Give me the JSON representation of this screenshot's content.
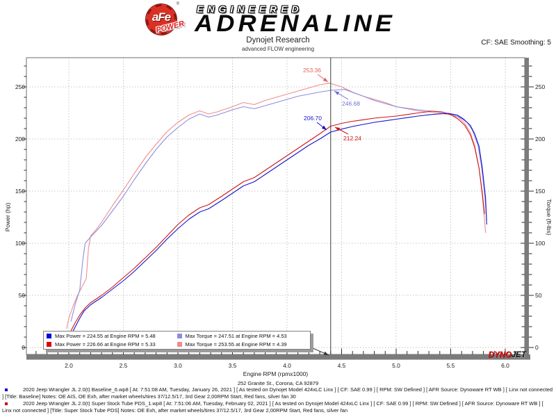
{
  "header": {
    "brand": {
      "circle_text": "aFe",
      "reg": "®",
      "circle_sub": "POWER",
      "line1": "ENGINEERED",
      "line2": "ADRENALINE"
    },
    "title": "Dynojet Research",
    "subtitle": "advanced FLOW engineering",
    "smoothing": "CF: SAE Smoothing: 5"
  },
  "chart_data": {
    "type": "line",
    "xlabel": "Engine RPM (rpmx1000)",
    "ylabel_left": "Power (hp)",
    "ylabel_right": "Torque (ft-lbs)",
    "xlim": [
      1.62,
      6.18
    ],
    "ylim": [
      -7,
      279
    ],
    "x_ticks": [
      "2.0",
      "2.5",
      "3.0",
      "3.5",
      "4.0",
      "4.5",
      "5.0",
      "5.5",
      "6.0"
    ],
    "x_tick_values": [
      2.0,
      2.5,
      3.0,
      3.5,
      4.0,
      4.5,
      5.0,
      5.5,
      6.0
    ],
    "y_ticks": [
      0,
      50,
      100,
      150,
      200,
      250
    ],
    "x_minor_step": 0.1,
    "y_minor_step": 10,
    "grid": true,
    "cursor": {
      "rpm": 4.4,
      "label": "4.4"
    },
    "series": [
      {
        "id": "torque_ss",
        "name": "Torque - Super Stock Tube PDS",
        "color": "#ef8d8d",
        "points": [
          [
            1.98,
            18
          ],
          [
            2.0,
            28
          ],
          [
            2.04,
            40
          ],
          [
            2.08,
            50
          ],
          [
            2.12,
            58
          ],
          [
            2.16,
            66
          ],
          [
            2.18,
            95
          ],
          [
            2.2,
            107
          ],
          [
            2.25,
            113
          ],
          [
            2.3,
            120
          ],
          [
            2.4,
            136
          ],
          [
            2.5,
            151
          ],
          [
            2.6,
            167
          ],
          [
            2.7,
            182
          ],
          [
            2.8,
            195
          ],
          [
            2.9,
            207
          ],
          [
            3.0,
            216
          ],
          [
            3.1,
            223
          ],
          [
            3.2,
            227
          ],
          [
            3.28,
            224
          ],
          [
            3.36,
            226
          ],
          [
            3.5,
            231
          ],
          [
            3.6,
            235
          ],
          [
            3.7,
            233
          ],
          [
            3.8,
            237
          ],
          [
            3.9,
            240
          ],
          [
            4.0,
            243
          ],
          [
            4.1,
            246
          ],
          [
            4.2,
            249
          ],
          [
            4.3,
            252
          ],
          [
            4.39,
            253.55
          ],
          [
            4.5,
            250
          ],
          [
            4.6,
            245
          ],
          [
            4.7,
            241
          ],
          [
            4.8,
            238
          ],
          [
            4.9,
            235
          ],
          [
            5.0,
            231
          ],
          [
            5.1,
            229
          ],
          [
            5.2,
            227
          ],
          [
            5.3,
            226
          ],
          [
            5.4,
            225
          ],
          [
            5.5,
            223
          ],
          [
            5.57,
            221
          ],
          [
            5.63,
            215
          ],
          [
            5.68,
            206
          ],
          [
            5.72,
            194
          ],
          [
            5.76,
            172
          ],
          [
            5.79,
            145
          ],
          [
            5.81,
            122
          ],
          [
            5.82,
            110
          ]
        ]
      },
      {
        "id": "torque_bl",
        "name": "Torque - Baseline",
        "color": "#8d8de0",
        "points": [
          [
            2.02,
            25
          ],
          [
            2.06,
            42
          ],
          [
            2.1,
            55
          ],
          [
            2.13,
            85
          ],
          [
            2.15,
            100
          ],
          [
            2.2,
            106
          ],
          [
            2.3,
            117
          ],
          [
            2.4,
            131
          ],
          [
            2.5,
            145
          ],
          [
            2.6,
            161
          ],
          [
            2.7,
            176
          ],
          [
            2.8,
            190
          ],
          [
            2.9,
            202
          ],
          [
            3.0,
            211
          ],
          [
            3.1,
            219
          ],
          [
            3.2,
            224
          ],
          [
            3.28,
            221
          ],
          [
            3.36,
            223
          ],
          [
            3.5,
            228
          ],
          [
            3.6,
            231
          ],
          [
            3.7,
            229
          ],
          [
            3.8,
            232
          ],
          [
            3.9,
            235
          ],
          [
            4.0,
            238
          ],
          [
            4.1,
            241
          ],
          [
            4.2,
            243
          ],
          [
            4.3,
            245
          ],
          [
            4.4,
            246.68
          ],
          [
            4.53,
            247.51
          ],
          [
            4.62,
            244
          ],
          [
            4.7,
            241
          ],
          [
            4.8,
            237
          ],
          [
            4.9,
            234
          ],
          [
            5.0,
            231
          ],
          [
            5.1,
            229.5
          ],
          [
            5.2,
            228
          ],
          [
            5.3,
            227
          ],
          [
            5.4,
            226
          ],
          [
            5.5,
            224
          ],
          [
            5.58,
            221
          ],
          [
            5.65,
            216
          ],
          [
            5.7,
            208
          ],
          [
            5.75,
            194
          ],
          [
            5.78,
            175
          ],
          [
            5.81,
            148
          ],
          [
            5.83,
            122
          ]
        ]
      },
      {
        "id": "power_ss",
        "name": "Power - Super Stock Tube PDS",
        "color": "#cc1616",
        "points": [
          [
            1.98,
            10
          ],
          [
            2.02,
            16
          ],
          [
            2.06,
            24
          ],
          [
            2.1,
            31
          ],
          [
            2.15,
            38
          ],
          [
            2.2,
            43
          ],
          [
            2.3,
            50
          ],
          [
            2.4,
            58
          ],
          [
            2.5,
            67
          ],
          [
            2.6,
            76
          ],
          [
            2.7,
            86
          ],
          [
            2.8,
            96
          ],
          [
            2.9,
            107
          ],
          [
            3.0,
            118
          ],
          [
            3.1,
            127
          ],
          [
            3.2,
            134
          ],
          [
            3.28,
            137
          ],
          [
            3.4,
            145
          ],
          [
            3.5,
            152
          ],
          [
            3.6,
            159
          ],
          [
            3.7,
            163
          ],
          [
            3.8,
            170
          ],
          [
            3.9,
            177
          ],
          [
            4.0,
            184
          ],
          [
            4.1,
            191
          ],
          [
            4.2,
            198
          ],
          [
            4.3,
            205
          ],
          [
            4.4,
            212.24
          ],
          [
            4.5,
            215
          ],
          [
            4.6,
            217
          ],
          [
            4.7,
            218.5
          ],
          [
            4.8,
            220
          ],
          [
            4.9,
            221
          ],
          [
            5.0,
            222
          ],
          [
            5.1,
            223.5
          ],
          [
            5.2,
            225
          ],
          [
            5.33,
            226.66
          ],
          [
            5.42,
            226
          ],
          [
            5.5,
            223.5
          ],
          [
            5.57,
            219
          ],
          [
            5.63,
            213
          ],
          [
            5.68,
            204
          ],
          [
            5.72,
            192
          ],
          [
            5.76,
            172
          ],
          [
            5.79,
            148
          ],
          [
            5.81,
            128
          ]
        ]
      },
      {
        "id": "power_bl",
        "name": "Power - Baseline",
        "color": "#1414cc",
        "points": [
          [
            2.02,
            12
          ],
          [
            2.06,
            20
          ],
          [
            2.1,
            28
          ],
          [
            2.14,
            35
          ],
          [
            2.2,
            41
          ],
          [
            2.3,
            48
          ],
          [
            2.4,
            56
          ],
          [
            2.5,
            64
          ],
          [
            2.6,
            73
          ],
          [
            2.7,
            83
          ],
          [
            2.8,
            93
          ],
          [
            2.9,
            104
          ],
          [
            3.0,
            114
          ],
          [
            3.1,
            123
          ],
          [
            3.2,
            130
          ],
          [
            3.28,
            133
          ],
          [
            3.4,
            141
          ],
          [
            3.5,
            148
          ],
          [
            3.6,
            155
          ],
          [
            3.7,
            159
          ],
          [
            3.8,
            166
          ],
          [
            3.9,
            173
          ],
          [
            4.0,
            180
          ],
          [
            4.1,
            187
          ],
          [
            4.2,
            194
          ],
          [
            4.3,
            200
          ],
          [
            4.4,
            206.7
          ],
          [
            4.5,
            209.5
          ],
          [
            4.6,
            212
          ],
          [
            4.7,
            214
          ],
          [
            4.8,
            216
          ],
          [
            4.9,
            217.5
          ],
          [
            5.0,
            219
          ],
          [
            5.1,
            220.5
          ],
          [
            5.2,
            222
          ],
          [
            5.35,
            223.8
          ],
          [
            5.48,
            224.55
          ],
          [
            5.56,
            223
          ],
          [
            5.62,
            219
          ],
          [
            5.68,
            213
          ],
          [
            5.72,
            205
          ],
          [
            5.76,
            193
          ],
          [
            5.79,
            172
          ],
          [
            5.82,
            143
          ],
          [
            5.83,
            118
          ]
        ]
      }
    ],
    "callouts": [
      {
        "id": "c-torque-ss",
        "label": "253.36",
        "color": "#e06060"
      },
      {
        "id": "c-torque-bl",
        "label": "246.68",
        "color": "#7070d8"
      },
      {
        "id": "c-power-bl",
        "label": "206.70",
        "color": "#1414cc"
      },
      {
        "id": "c-power-ss",
        "label": "212.24",
        "color": "#cc1616"
      },
      {
        "id": "c-cursor",
        "label": "4.4",
        "color": "#333333"
      }
    ],
    "legend": [
      {
        "color": "#0000e0",
        "label": "Max Power = 224.55 at Engine RPM = 5.48"
      },
      {
        "color": "#e00000",
        "label": "Max Power = 226.66 at Engine RPM = 5.33"
      },
      {
        "color": "#8d8de0",
        "label": "Max Torque = 247.51 at Engine RPM = 4.53"
      },
      {
        "color": "#ef8d8d",
        "label": "Max Torque = 253.55 at Engine RPM = 4.39"
      }
    ],
    "watermark": {
      "part1": "DYNO",
      "part2": "JET"
    }
  },
  "footer": {
    "address": "252 Granite St., Corona, CA 92879",
    "entries": [
      {
        "bullet_color": "#0000cc",
        "text": "2020 Jeep Wrangler JL 2.0(t) Baseline_6.wp8 [ At: 7:51:08 AM, Tuesday, January 26, 2021 ] [ As tested on Dynojet Model 424xLC Linx ] [ CF: SAE 0.99 ] [ RPM: SW Defined ] [ AFR Source: Dynoware RT WB ] [ Linx not connected ] [Title: Baseline]  Notes: OE AIS, OE Exh, after market wheels/tires 37/12.5/17, 3rd Gear 2,00RPM Start, Red fans, silver fan 30"
      },
      {
        "bullet_color": "#cc0000",
        "text": "2020 Jeep Wrangler JL 2.0(t) Super Stock Tube PDS_1.wp8 [ At: 7:51:06 AM, Tuesday, February 02, 2021 ] [ As tested on Dynojet Model 424xLC Linx ] [ CF: SAE 0.99 ] [ RPM: SW Defined ] [ AFR Source: Dynoware RT WB ] [ Linx not connected ] [Title: Super Stock Tube PDS]  Notes:  OE Exh, after market wheels/tires 37/12.5/17, 3rd Gear 2,00RPM Start, Red fans, silver fan"
      }
    ]
  }
}
